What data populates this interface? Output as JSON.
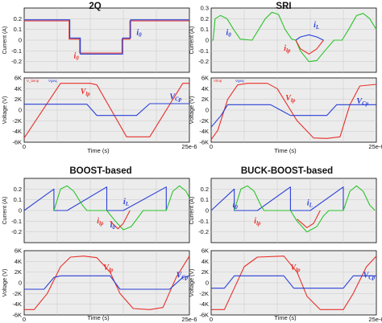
{
  "colors": {
    "red": "#e8302a",
    "blue": "#2a3fd6",
    "green": "#2bc42b",
    "grid": "#c8c8c8",
    "plotbg": "#ececec"
  },
  "chart_data": [
    {
      "type": "line",
      "panel": "2Q",
      "title": "2Q",
      "ylabel": "Current (A)",
      "ylim": [
        -0.3,
        0.3
      ],
      "yticks": [
        "0.2",
        "0.1",
        "0",
        "-0.1",
        "-0.2"
      ],
      "series": [
        {
          "color": "red",
          "points": [
            [
              0,
              0.18
            ],
            [
              6.8,
              0.18
            ],
            [
              6.8,
              0.01
            ],
            [
              8.4,
              0.01
            ],
            [
              8.4,
              -0.12
            ],
            [
              14.8,
              -0.12
            ],
            [
              14.8,
              0.01
            ],
            [
              16,
              0.01
            ],
            [
              16,
              0.18
            ],
            [
              25,
              0.18
            ]
          ]
        },
        {
          "color": "blue",
          "points": [
            [
              0,
              0.19
            ],
            [
              6.9,
              0.19
            ],
            [
              6.9,
              0.02
            ],
            [
              8.5,
              0.02
            ],
            [
              8.5,
              -0.13
            ],
            [
              14.9,
              -0.13
            ],
            [
              14.9,
              0.02
            ],
            [
              16.1,
              0.02
            ],
            [
              16.1,
              0.19
            ],
            [
              25,
              0.19
            ]
          ]
        }
      ],
      "annotations": [
        {
          "text": "i",
          "sub": "0",
          "color": "blue"
        },
        {
          "text": "i",
          "sub": "0",
          "color": "red"
        }
      ]
    },
    {
      "type": "line",
      "panel": "2Q",
      "legend_entries": [
        "V_lamp",
        "Vgeq"
      ],
      "ylabel": "Voltage (V)",
      "ylim": [
        -6000,
        6000
      ],
      "yticks": [
        "6K",
        "4K",
        "2K",
        "0",
        "-2K",
        "-4K",
        "-6K"
      ],
      "xlabel": "Time (s)",
      "xlim": [
        0,
        25
      ],
      "xticks": [
        "0",
        "25e-6"
      ],
      "series": [
        {
          "color": "red",
          "points": [
            [
              0,
              -5200
            ],
            [
              5.5,
              5000
            ],
            [
              10,
              5000
            ],
            [
              11,
              4700
            ],
            [
              15.5,
              -5000
            ],
            [
              19,
              -5000
            ],
            [
              24,
              5000
            ],
            [
              25,
              5000
            ]
          ]
        },
        {
          "color": "blue",
          "points": [
            [
              0,
              1100
            ],
            [
              5.5,
              1100
            ],
            [
              9.5,
              1100
            ],
            [
              11,
              -1000
            ],
            [
              17,
              -1000
            ],
            [
              19,
              1200
            ],
            [
              25,
              1200
            ]
          ]
        }
      ],
      "annotations": [
        {
          "text": "V",
          "sub": "lp",
          "color": "red"
        },
        {
          "text": "V",
          "sub": "Cp",
          "color": "blue"
        }
      ]
    },
    {
      "type": "line",
      "panel": "SRI",
      "title": "SRI",
      "ylabel": "Current (A)",
      "ylim": [
        -0.3,
        0.3
      ],
      "yticks": [
        "0.3",
        "0.2",
        "0.1",
        "0",
        "-0.1",
        "-0.2"
      ],
      "series": [
        {
          "color": "green",
          "points": [
            [
              0,
              0
            ],
            [
              0.3,
              0
            ],
            [
              0.6,
              0.2
            ],
            [
              1.4,
              0.23
            ],
            [
              2.4,
              0.2
            ],
            [
              3.4,
              0.1
            ],
            [
              4.4,
              0.01
            ],
            [
              6.2,
              0
            ],
            [
              7.2,
              0.1
            ],
            [
              8.2,
              0.2
            ],
            [
              9.2,
              0.26
            ],
            [
              10.2,
              0.24
            ],
            [
              11.2,
              0.1
            ],
            [
              12.2,
              0.01
            ],
            [
              12.8,
              0
            ],
            [
              13.5,
              -0.1
            ],
            [
              14.8,
              -0.2
            ],
            [
              16,
              -0.19
            ],
            [
              17.2,
              -0.1
            ],
            [
              18.6,
              0
            ],
            [
              19.8,
              0
            ],
            [
              20.8,
              0.1
            ],
            [
              22,
              0.23
            ],
            [
              23,
              0.25
            ],
            [
              24,
              0.2
            ],
            [
              25,
              0.1
            ]
          ]
        },
        {
          "color": "red",
          "points": [
            [
              12.8,
              0
            ],
            [
              13.5,
              -0.08
            ],
            [
              14.8,
              -0.13
            ],
            [
              16,
              -0.08
            ],
            [
              17,
              0
            ]
          ]
        },
        {
          "color": "blue",
          "points": [
            [
              12.8,
              0
            ],
            [
              13.5,
              0.03
            ],
            [
              14.8,
              0.05
            ],
            [
              16,
              0.03
            ],
            [
              17,
              0
            ]
          ]
        }
      ],
      "annotations": [
        {
          "text": "i",
          "sub": "L",
          "color": "blue"
        },
        {
          "text": "i",
          "sub": "0",
          "color": "blue"
        },
        {
          "text": "i",
          "sub": "lp",
          "color": "red"
        }
      ]
    },
    {
      "type": "line",
      "panel": "SRI",
      "legend_entries": [
        "Vlmp",
        "Vgeq"
      ],
      "ylabel": "Voltage (V)",
      "ylim": [
        -6000,
        6000
      ],
      "yticks": [
        "6K",
        "4K",
        "2K",
        "0",
        "-2K",
        "-4K",
        "-6K"
      ],
      "xlabel": "Time (s)",
      "xlim": [
        0,
        25
      ],
      "xticks": [
        "0",
        "25e-6"
      ],
      "series": [
        {
          "color": "red",
          "points": [
            [
              0,
              -5500
            ],
            [
              1,
              -3800
            ],
            [
              2.5,
              2000
            ],
            [
              4,
              4700
            ],
            [
              5.5,
              5000
            ],
            [
              8.5,
              5000
            ],
            [
              10,
              4000
            ],
            [
              13,
              -2000
            ],
            [
              15.5,
              -5200
            ],
            [
              17.5,
              -5300
            ],
            [
              19.5,
              -5000
            ],
            [
              21,
              1000
            ],
            [
              22.5,
              4500
            ],
            [
              25,
              4800
            ]
          ]
        },
        {
          "color": "blue",
          "points": [
            [
              0,
              -3200
            ],
            [
              1.5,
              -1000
            ],
            [
              2.5,
              1000
            ],
            [
              9,
              1000
            ],
            [
              10.5,
              0
            ],
            [
              12,
              -1000
            ],
            [
              17.5,
              -1000
            ],
            [
              19,
              1000
            ],
            [
              25,
              1000
            ]
          ]
        }
      ],
      "annotations": [
        {
          "text": "V",
          "sub": "lp",
          "color": "red"
        },
        {
          "text": "V",
          "sub": "Cp",
          "color": "blue"
        }
      ]
    },
    {
      "type": "line",
      "panel": "BOOST-based",
      "title": "BOOST-based",
      "ylabel": "Current (A)",
      "ylim": [
        -0.3,
        0.3
      ],
      "yticks": [
        "0.2",
        "0.1",
        "0",
        "-0.1",
        "-0.2"
      ],
      "series": [
        {
          "color": "blue",
          "points": [
            [
              0,
              0
            ],
            [
              4.5,
              0.2
            ],
            [
              4.5,
              0
            ],
            [
              6.5,
              0
            ],
            [
              12.5,
              0.22
            ],
            [
              12.5,
              0
            ],
            [
              15,
              0
            ],
            [
              21.5,
              0.22
            ],
            [
              21.5,
              0
            ]
          ]
        },
        {
          "color": "green",
          "points": [
            [
              4.5,
              0
            ],
            [
              5.5,
              0.2
            ],
            [
              6.5,
              0.23
            ],
            [
              7.5,
              0.18
            ],
            [
              8.8,
              0.05
            ],
            [
              9.5,
              0
            ],
            [
              12.5,
              0
            ],
            [
              13.8,
              -0.1
            ],
            [
              15,
              -0.18
            ],
            [
              16.2,
              -0.15
            ],
            [
              17.4,
              -0.05
            ],
            [
              18,
              0
            ],
            [
              21.5,
              0
            ],
            [
              22.5,
              0.18
            ],
            [
              23.5,
              0.23
            ],
            [
              24.5,
              0.18
            ],
            [
              25,
              0.12
            ]
          ]
        },
        {
          "color": "red",
          "points": [
            [
              13,
              -0.1
            ],
            [
              14.2,
              -0.17
            ],
            [
              15,
              -0.12
            ],
            [
              16,
              0
            ]
          ]
        }
      ],
      "annotations": [
        {
          "text": "i",
          "sub": "L",
          "color": "blue"
        },
        {
          "text": "i",
          "sub": "lp",
          "color": "red"
        },
        {
          "text": "i",
          "sub": "0",
          "color": "blue"
        }
      ]
    },
    {
      "type": "line",
      "panel": "BOOST-based",
      "ylabel": "Voltage (V)",
      "ylim": [
        -6000,
        6000
      ],
      "yticks": [
        "6K",
        "4K",
        "2K",
        "0",
        "-2K",
        "-4K",
        "-6K"
      ],
      "xlabel": "Time (s)",
      "xlim": [
        0,
        25
      ],
      "xticks": [
        "0",
        "25e-6"
      ],
      "series": [
        {
          "color": "red",
          "points": [
            [
              0,
              -5000
            ],
            [
              1.5,
              -5000
            ],
            [
              3.5,
              -2000
            ],
            [
              5.5,
              3000
            ],
            [
              7,
              4800
            ],
            [
              9,
              5000
            ],
            [
              11,
              4700
            ],
            [
              13,
              2000
            ],
            [
              14.5,
              -2000
            ],
            [
              16.5,
              -4800
            ],
            [
              19,
              -5000
            ],
            [
              21,
              -4600
            ],
            [
              23,
              1000
            ],
            [
              25,
              5000
            ]
          ]
        },
        {
          "color": "blue",
          "points": [
            [
              0,
              -1200
            ],
            [
              3,
              -1200
            ],
            [
              4.5,
              1000
            ],
            [
              5.5,
              1300
            ],
            [
              13,
              1300
            ],
            [
              14.5,
              -1200
            ],
            [
              22,
              -1200
            ],
            [
              24,
              1000
            ],
            [
              25,
              1300
            ]
          ]
        }
      ],
      "annotations": [
        {
          "text": "V",
          "sub": "lp",
          "color": "red"
        },
        {
          "text": "V",
          "sub": "Cp",
          "color": "blue"
        }
      ]
    },
    {
      "type": "line",
      "panel": "BUCK-BOOST-based",
      "title": "BUCK-BOOST-based",
      "ylabel": "Current (A)",
      "ylim": [
        -0.3,
        0.3
      ],
      "yticks": [
        "0.2",
        "0.1",
        "0",
        "-0.1",
        "-0.2"
      ],
      "series": [
        {
          "color": "blue",
          "points": [
            [
              0,
              0
            ],
            [
              3.5,
              0.2
            ],
            [
              3.5,
              0
            ],
            [
              7,
              0
            ],
            [
              12,
              0.22
            ],
            [
              12,
              0
            ],
            [
              15,
              0
            ],
            [
              20,
              0.22
            ],
            [
              20,
              0
            ]
          ]
        },
        {
          "color": "green",
          "points": [
            [
              3.5,
              0
            ],
            [
              4.5,
              0.2
            ],
            [
              5.5,
              0.23
            ],
            [
              6.5,
              0.18
            ],
            [
              7.5,
              0.05
            ],
            [
              8,
              0
            ],
            [
              12,
              0
            ],
            [
              13,
              -0.1
            ],
            [
              14.5,
              -0.2
            ],
            [
              16,
              -0.15
            ],
            [
              17,
              -0.05
            ],
            [
              17.8,
              0
            ],
            [
              20,
              0
            ],
            [
              21,
              0.18
            ],
            [
              22,
              0.23
            ],
            [
              23,
              0.18
            ],
            [
              24,
              0.05
            ],
            [
              24.8,
              0
            ]
          ]
        },
        {
          "color": "red",
          "points": [
            [
              13,
              -0.08
            ],
            [
              14.5,
              -0.16
            ],
            [
              15.5,
              -0.12
            ],
            [
              16.5,
              0
            ]
          ]
        }
      ],
      "annotations": [
        {
          "text": "i",
          "sub": "0",
          "color": "blue"
        },
        {
          "text": "i",
          "sub": "L",
          "color": "blue"
        },
        {
          "text": "i",
          "sub": "lp",
          "color": "red"
        }
      ]
    },
    {
      "type": "line",
      "panel": "BUCK-BOOST-based",
      "ylabel": "Voltage (V)",
      "ylim": [
        -6000,
        6000
      ],
      "yticks": [
        "6K",
        "4K",
        "2K",
        "0",
        "-2K",
        "-4K",
        "-6K"
      ],
      "xlabel": "Time (s)",
      "xlim": [
        0,
        25
      ],
      "xticks": [
        "0",
        "25e-6"
      ],
      "series": [
        {
          "color": "red",
          "points": [
            [
              0,
              -5000
            ],
            [
              2,
              -5000
            ],
            [
              3.5,
              -1000
            ],
            [
              5,
              3000
            ],
            [
              7,
              4800
            ],
            [
              11,
              5000
            ],
            [
              13,
              2000
            ],
            [
              14.5,
              -2500
            ],
            [
              16.5,
              -5000
            ],
            [
              20,
              -5000
            ],
            [
              21.5,
              -2000
            ],
            [
              23.5,
              3000
            ],
            [
              25,
              5000
            ]
          ]
        },
        {
          "color": "blue",
          "points": [
            [
              0,
              -1000
            ],
            [
              2,
              -1000
            ],
            [
              3.5,
              1300
            ],
            [
              11,
              1300
            ],
            [
              12.5,
              -1000
            ],
            [
              20,
              -1000
            ],
            [
              21.5,
              1300
            ],
            [
              25,
              1300
            ]
          ]
        }
      ],
      "annotations": [
        {
          "text": "V",
          "sub": "lp",
          "color": "red"
        },
        {
          "text": "V",
          "sub": "Cp",
          "color": "blue"
        }
      ]
    }
  ]
}
